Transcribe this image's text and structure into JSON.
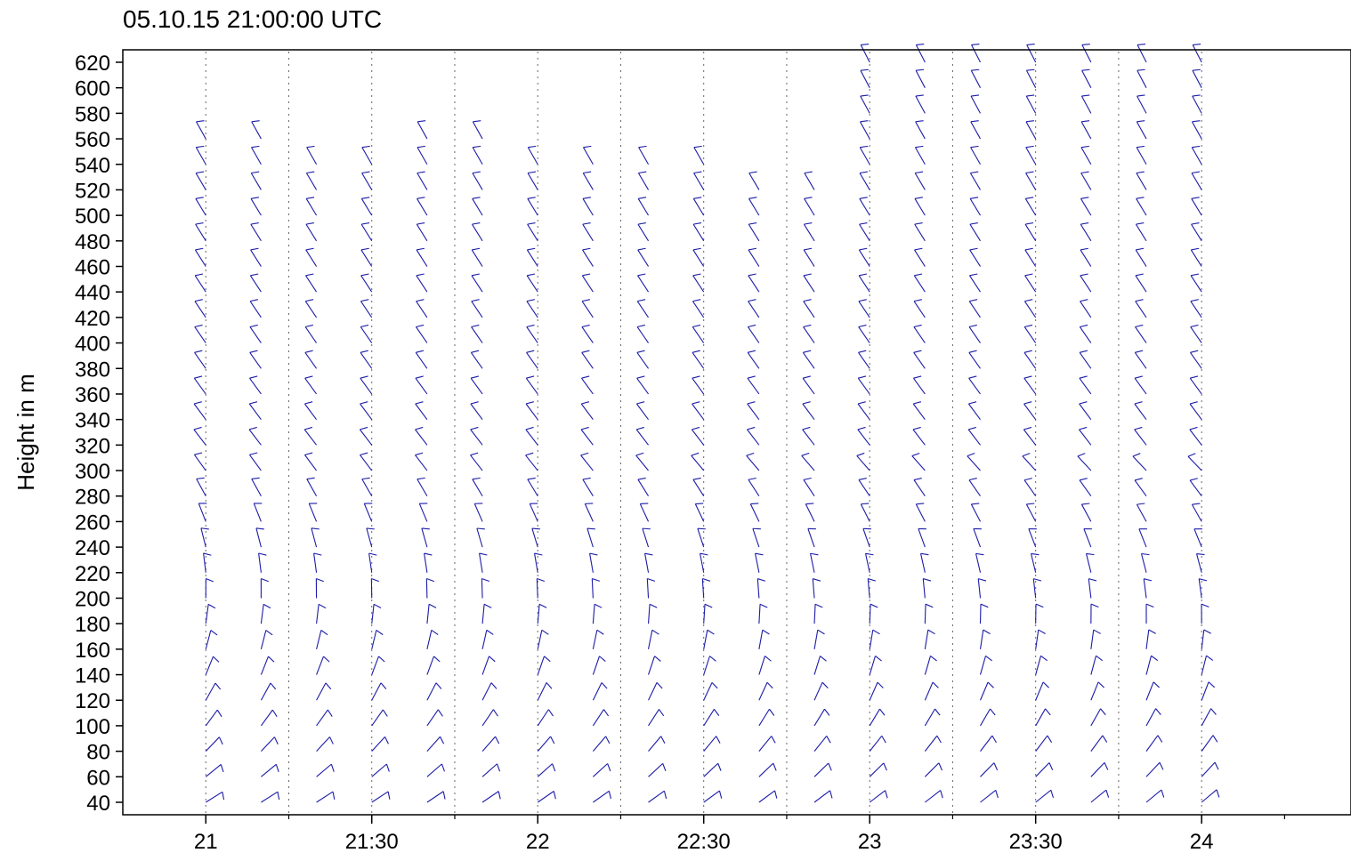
{
  "chart_data": {
    "type": "wind-barbs",
    "title": "05.10.15 21:00:00   UTC",
    "xlabel": "",
    "ylabel": "Height in m",
    "ylim": [
      40,
      620
    ],
    "y_ticks": [
      40,
      60,
      80,
      100,
      120,
      140,
      160,
      180,
      200,
      220,
      240,
      260,
      280,
      300,
      320,
      340,
      360,
      380,
      400,
      420,
      440,
      460,
      480,
      500,
      520,
      540,
      560,
      580,
      600,
      620
    ],
    "x_range_hours": [
      20.75,
      24.45
    ],
    "x_ticks": [
      {
        "hour": 21.0,
        "label": "21"
      },
      {
        "hour": 21.5,
        "label": "21:30"
      },
      {
        "hour": 22.0,
        "label": "22"
      },
      {
        "hour": 22.5,
        "label": "22:30"
      },
      {
        "hour": 23.0,
        "label": "23"
      },
      {
        "hour": 23.5,
        "label": "23:30"
      },
      {
        "hour": 24.0,
        "label": "24"
      }
    ],
    "gridlines_hours": [
      21.0,
      21.25,
      21.5,
      21.75,
      22.0,
      22.25,
      22.5,
      22.75,
      23.0,
      23.25,
      23.5,
      23.75,
      24.0
    ],
    "grid": "vertical dotted",
    "barb_color": "#1c1ca8",
    "profiles": [
      {
        "time": "21:00",
        "max_height": 560
      },
      {
        "time": "21:10",
        "max_height": 560
      },
      {
        "time": "21:20",
        "max_height": 540
      },
      {
        "time": "21:30",
        "max_height": 540
      },
      {
        "time": "21:40",
        "max_height": 560
      },
      {
        "time": "21:50",
        "max_height": 560
      },
      {
        "time": "22:00",
        "max_height": 540
      },
      {
        "time": "22:10",
        "max_height": 540
      },
      {
        "time": "22:20",
        "max_height": 540
      },
      {
        "time": "22:30",
        "max_height": 540
      },
      {
        "time": "22:40",
        "max_height": 520
      },
      {
        "time": "22:50",
        "max_height": 520
      },
      {
        "time": "23:00",
        "max_height": 620
      },
      {
        "time": "23:10",
        "max_height": 620
      },
      {
        "time": "23:20",
        "max_height": 620
      },
      {
        "time": "23:30",
        "max_height": 620
      },
      {
        "time": "23:40",
        "max_height": 620
      },
      {
        "time": "23:50",
        "max_height": 620
      },
      {
        "time": "24:00",
        "max_height": 620
      }
    ],
    "min_height": 40,
    "height_step": 20
  }
}
